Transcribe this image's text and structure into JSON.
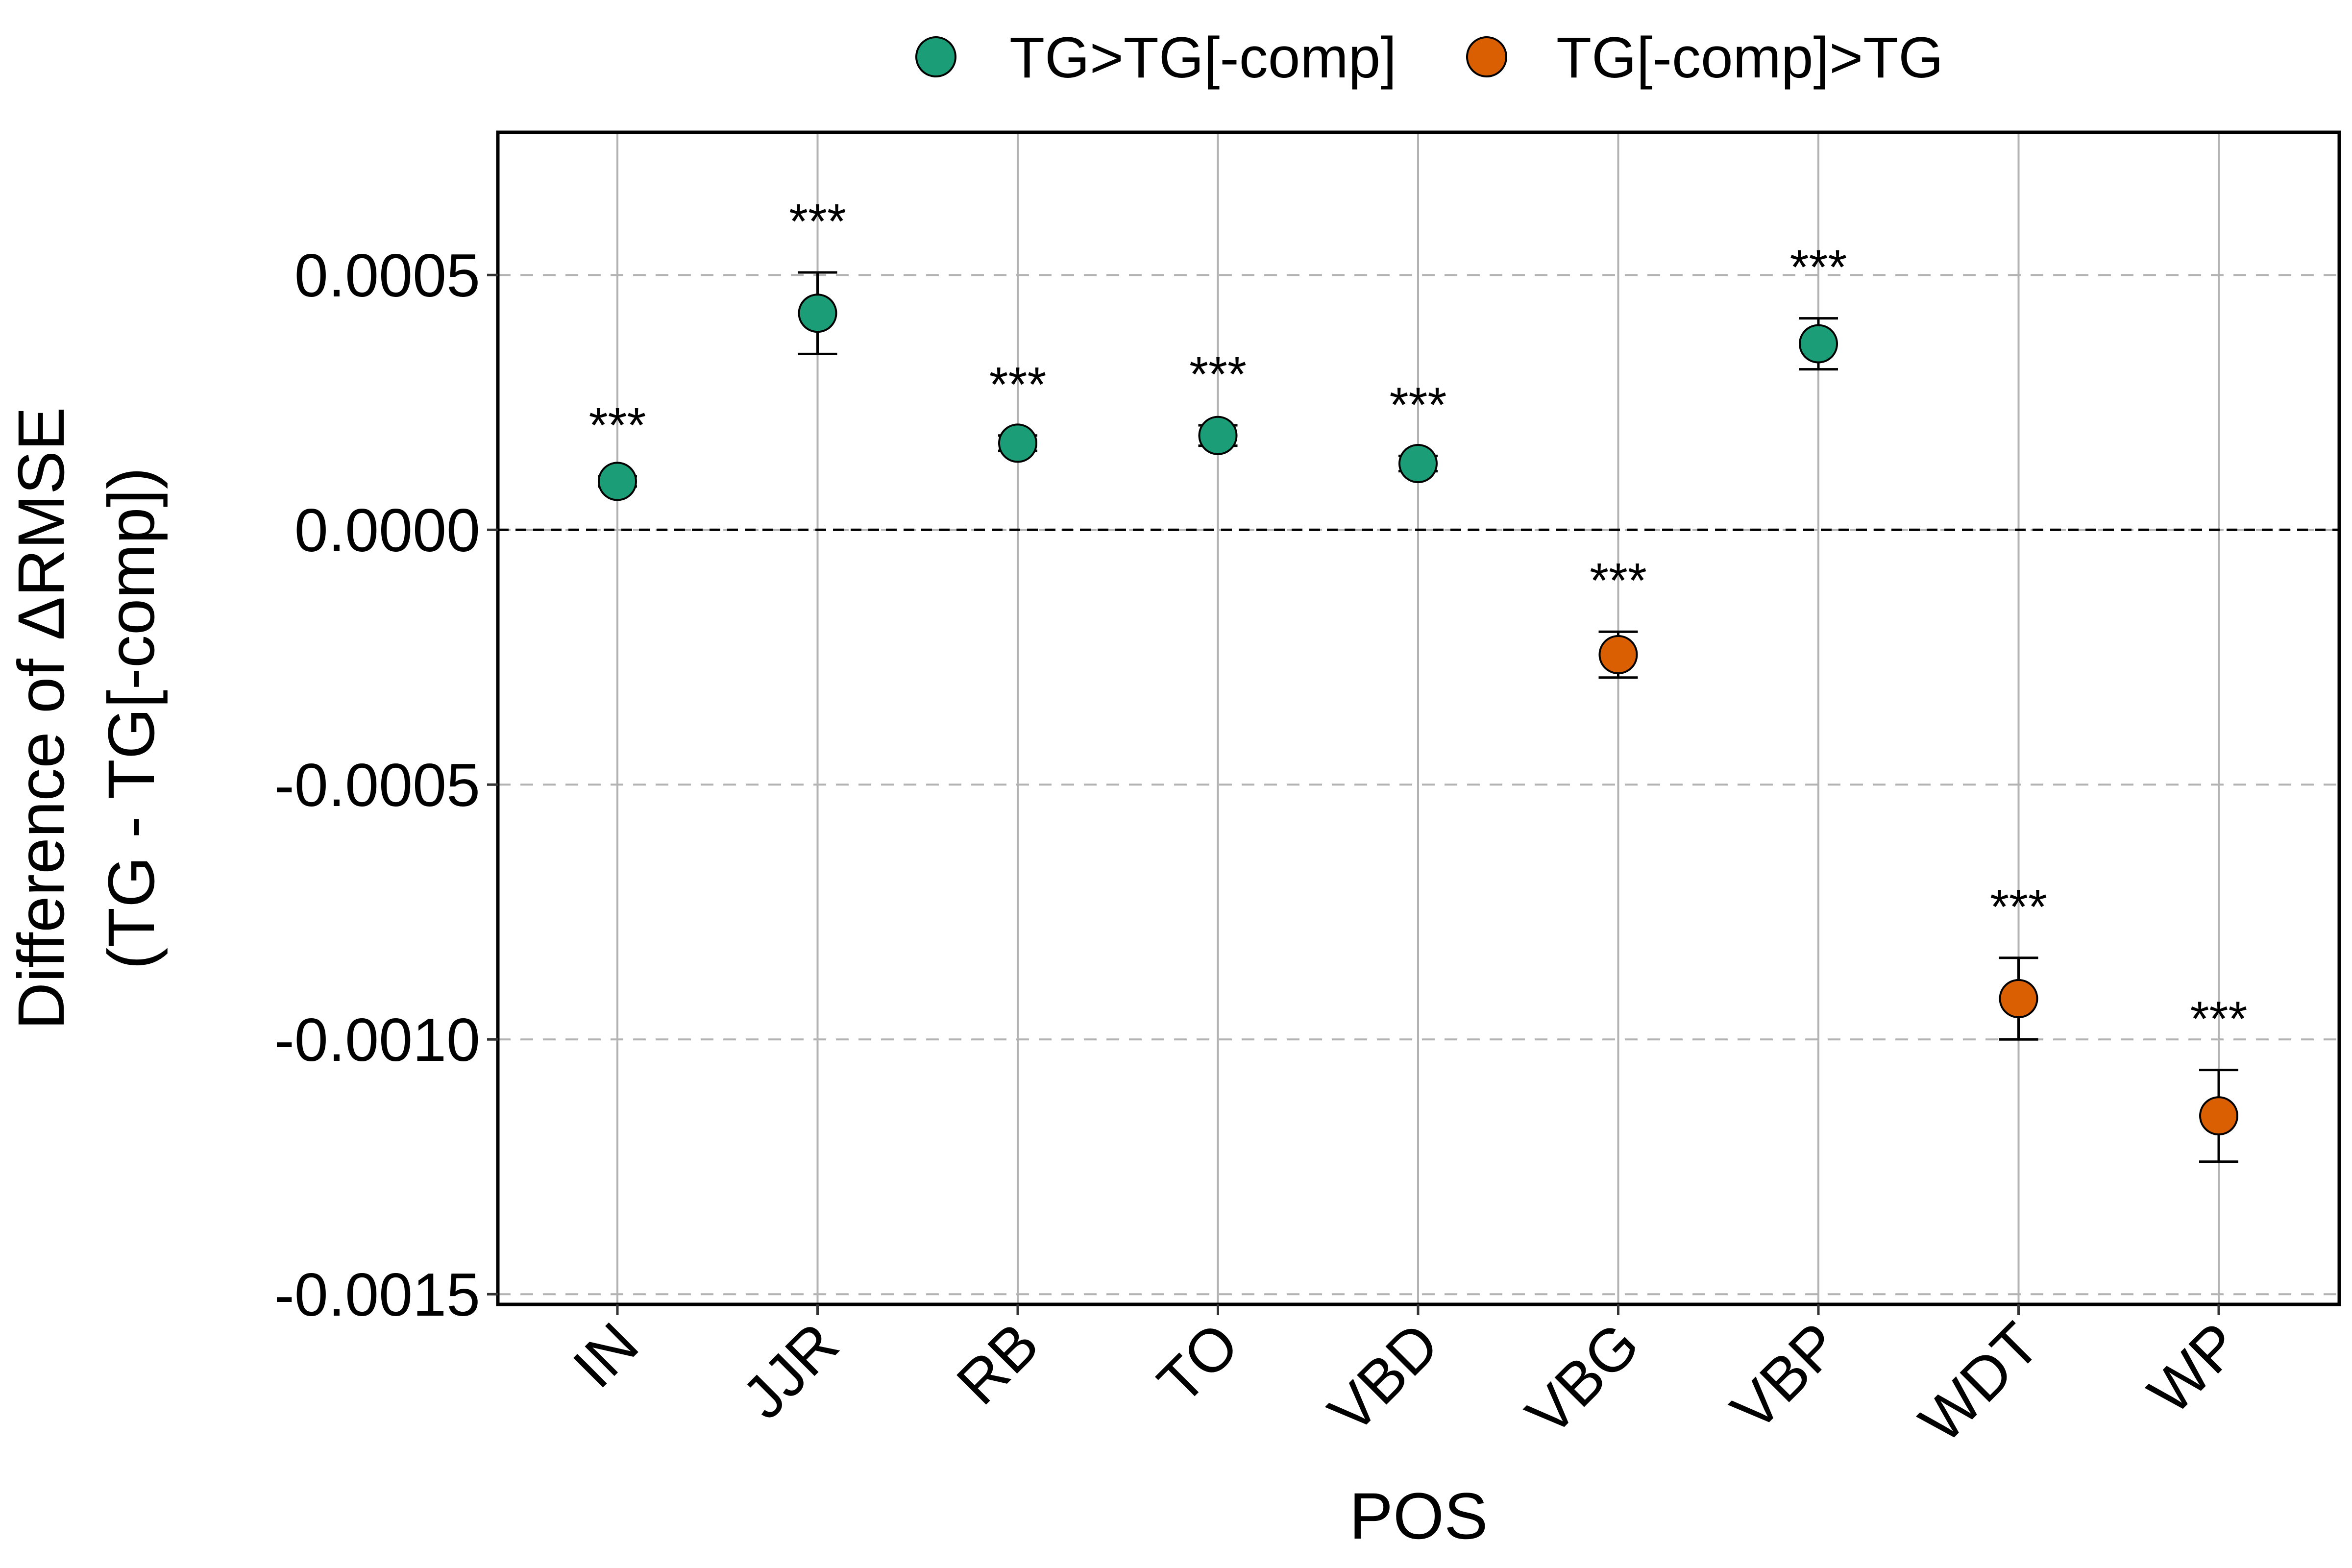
{
  "chart_data": {
    "type": "scatter",
    "title": "",
    "xlabel": "POS",
    "ylabel_lines": [
      "Difference of ΔRMSE",
      "(TG - TG[-comp])"
    ],
    "ylim": [
      -0.00152,
      0.00078
    ],
    "yticks": [
      0.0005,
      0.0,
      -0.0005,
      -0.001,
      -0.0015
    ],
    "ytick_labels": [
      "0.0005",
      "0.0000",
      "-0.0005",
      "-0.0010",
      "-0.0015"
    ],
    "reference_line": 0.0,
    "grid": true,
    "legend_position": "top",
    "series": [
      {
        "name": "TG>TG[-comp]",
        "color": "#1b9e77"
      },
      {
        "name": "TG[-comp]>TG",
        "color": "#d95f02"
      }
    ],
    "categories": [
      "IN",
      "JJR",
      "RB",
      "TO",
      "VBD",
      "VBG",
      "VBP",
      "WDT",
      "WP"
    ],
    "points": [
      {
        "category": "IN",
        "value": 9.5e-05,
        "lower": 8.5e-05,
        "upper": 0.000105,
        "series": "TG>TG[-comp]",
        "sig": "***"
      },
      {
        "category": "JJR",
        "value": 0.000425,
        "lower": 0.000345,
        "upper": 0.000505,
        "series": "TG>TG[-comp]",
        "sig": "***"
      },
      {
        "category": "RB",
        "value": 0.00017,
        "lower": 0.000155,
        "upper": 0.000185,
        "series": "TG>TG[-comp]",
        "sig": "***"
      },
      {
        "category": "TO",
        "value": 0.000185,
        "lower": 0.000165,
        "upper": 0.000205,
        "series": "TG>TG[-comp]",
        "sig": "***"
      },
      {
        "category": "VBD",
        "value": 0.00013,
        "lower": 0.000115,
        "upper": 0.000145,
        "series": "TG>TG[-comp]",
        "sig": "***"
      },
      {
        "category": "VBG",
        "value": -0.000245,
        "lower": -0.00029,
        "upper": -0.0002,
        "series": "TG[-comp]>TG",
        "sig": "***"
      },
      {
        "category": "VBP",
        "value": 0.000365,
        "lower": 0.000315,
        "upper": 0.000415,
        "series": "TG>TG[-comp]",
        "sig": "***"
      },
      {
        "category": "WDT",
        "value": -0.00092,
        "lower": -0.001,
        "upper": -0.00084,
        "series": "TG[-comp]>TG",
        "sig": "***"
      },
      {
        "category": "WP",
        "value": -0.00115,
        "lower": -0.00124,
        "upper": -0.00106,
        "series": "TG[-comp]>TG",
        "sig": "***"
      }
    ]
  }
}
